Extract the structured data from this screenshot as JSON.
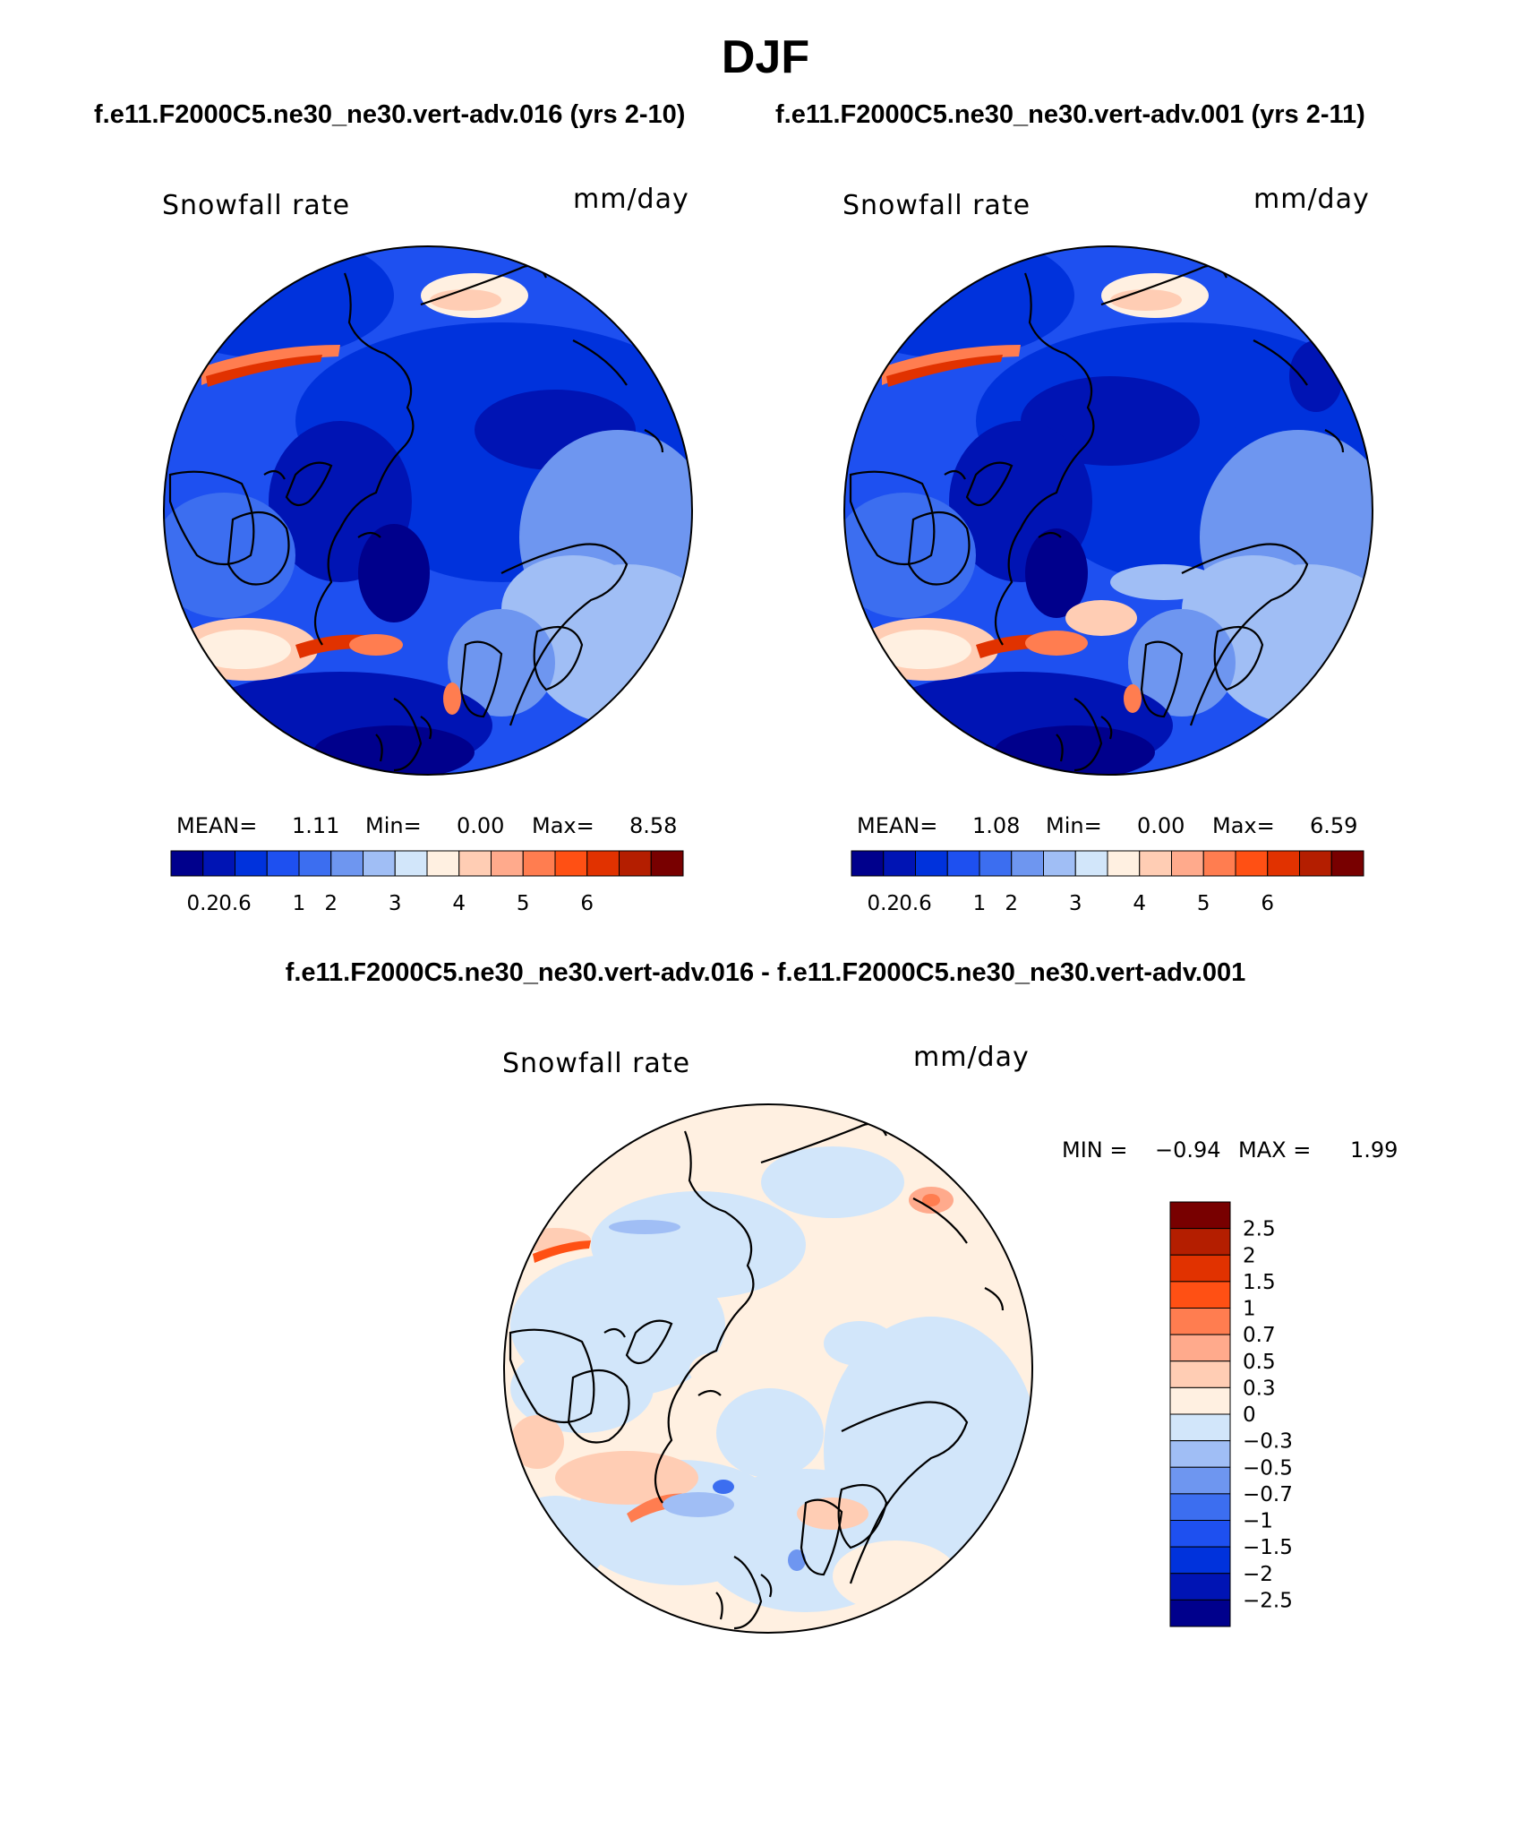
{
  "figure": {
    "season_title": "DJF",
    "left_title": "f.e11.F2000C5.ne30_ne30.vert-adv.016 (yrs 2-10)",
    "right_title": "f.e11.F2000C5.ne30_ne30.vert-adv.001 (yrs 2-11)",
    "diff_title": "f.e11.F2000C5.ne30_ne30.vert-adv.016 - f.e11.F2000C5.ne30_ne30.vert-adv.001"
  },
  "panels": {
    "left": {
      "variable": "Snowfall rate",
      "units": "mm/day",
      "mean_label": "MEAN=",
      "mean": "1.11",
      "min_label": "Min=",
      "min": "0.00",
      "max_label": "Max=",
      "max": "8.58"
    },
    "right": {
      "variable": "Snowfall rate",
      "units": "mm/day",
      "mean_label": "MEAN=",
      "mean": "1.08",
      "min_label": "Min=",
      "min": "0.00",
      "max_label": "Max=",
      "max": "6.59"
    },
    "diff": {
      "variable": "Snowfall rate",
      "units": "mm/day",
      "min_label": "MIN =",
      "min": "−0.94",
      "max_label": "MAX =",
      "max": "1.99"
    }
  },
  "colorbars": {
    "abs": {
      "colors": [
        "#00008c",
        "#0014b4",
        "#0032dc",
        "#1e50f0",
        "#3c6ef0",
        "#6e96f0",
        "#a0bef5",
        "#d2e6fa",
        "#fff0e1",
        "#ffcdb4",
        "#ffaa8c",
        "#ff7d50",
        "#ff5014",
        "#e13200",
        "#b41e00",
        "#780000"
      ],
      "tick_labels": [
        "0.2",
        "0.6",
        "1",
        "2",
        "3",
        "4",
        "5",
        "6"
      ],
      "tick_positions": [
        1,
        2,
        4,
        5,
        7,
        9,
        11,
        13
      ]
    },
    "diff": {
      "colors": [
        "#780000",
        "#b41e00",
        "#e13200",
        "#ff5014",
        "#ff7d50",
        "#ffaa8c",
        "#ffcdb4",
        "#fff0e1",
        "#d2e6fa",
        "#a0bef5",
        "#6e96f0",
        "#3c6ef0",
        "#1e50f0",
        "#0032dc",
        "#0014b4",
        "#00008c"
      ],
      "tick_labels": [
        "2.5",
        "2",
        "1.5",
        "1",
        "0.7",
        "0.5",
        "0.3",
        "0",
        "−0.3",
        "−0.5",
        "−0.7",
        "−1",
        "−1.5",
        "−2",
        "−2.5"
      ]
    }
  }
}
